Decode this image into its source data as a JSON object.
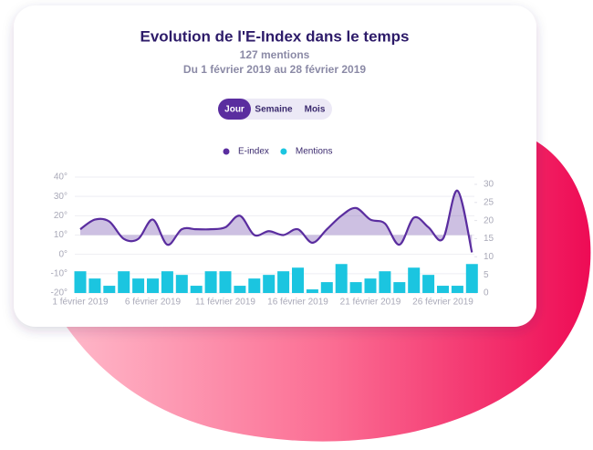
{
  "chart_data": {
    "type": "line",
    "title": "Evolution de l'E-Index dans le temps",
    "subtitle": "127 mentions",
    "date_range": "Du 1 février 2019 au 28 février 2019",
    "period_buttons": [
      "Jour",
      "Semaine",
      "Mois"
    ],
    "categories": [
      "1 février 2019",
      null,
      null,
      null,
      null,
      "6 février 2019",
      null,
      null,
      null,
      null,
      "11 février 2019",
      null,
      null,
      null,
      null,
      "16 février 2019",
      null,
      null,
      null,
      null,
      "21 février 2019",
      null,
      null,
      null,
      null,
      "26 février 2019",
      null,
      null
    ],
    "series": [
      {
        "name": "E-index",
        "color": "#5a2d9f",
        "type": "line",
        "area_baseline": 10,
        "values": [
          13,
          18,
          17,
          8,
          8,
          18,
          5,
          13,
          13,
          13,
          14,
          20,
          10,
          12,
          10,
          13,
          6,
          13,
          20,
          24,
          18,
          16,
          5,
          19,
          14,
          8,
          33,
          1
        ]
      },
      {
        "name": "Mentions",
        "color": "#1bc5e0",
        "type": "bar",
        "axis": "y2",
        "values": [
          6,
          4,
          2,
          6,
          4,
          4,
          6,
          5,
          2,
          6,
          6,
          2,
          4,
          5,
          6,
          7,
          1,
          3,
          8,
          3,
          4,
          6,
          3,
          7,
          5,
          2,
          2,
          8
        ]
      }
    ],
    "ylim": [
      -20,
      40
    ],
    "yticks": [
      {
        "value": 40,
        "label": "40°"
      },
      {
        "value": 30,
        "label": "30°"
      },
      {
        "value": 20,
        "label": "20°"
      },
      {
        "value": 10,
        "label": "10°"
      },
      {
        "value": 0,
        "label": "0°"
      },
      {
        "value": -10,
        "label": "-10°"
      },
      {
        "value": -20,
        "label": "-20°"
      }
    ],
    "y2lim": [
      0,
      32
    ],
    "y2ticks": [
      0,
      5,
      10,
      15,
      20,
      25,
      30
    ],
    "grid": true
  }
}
